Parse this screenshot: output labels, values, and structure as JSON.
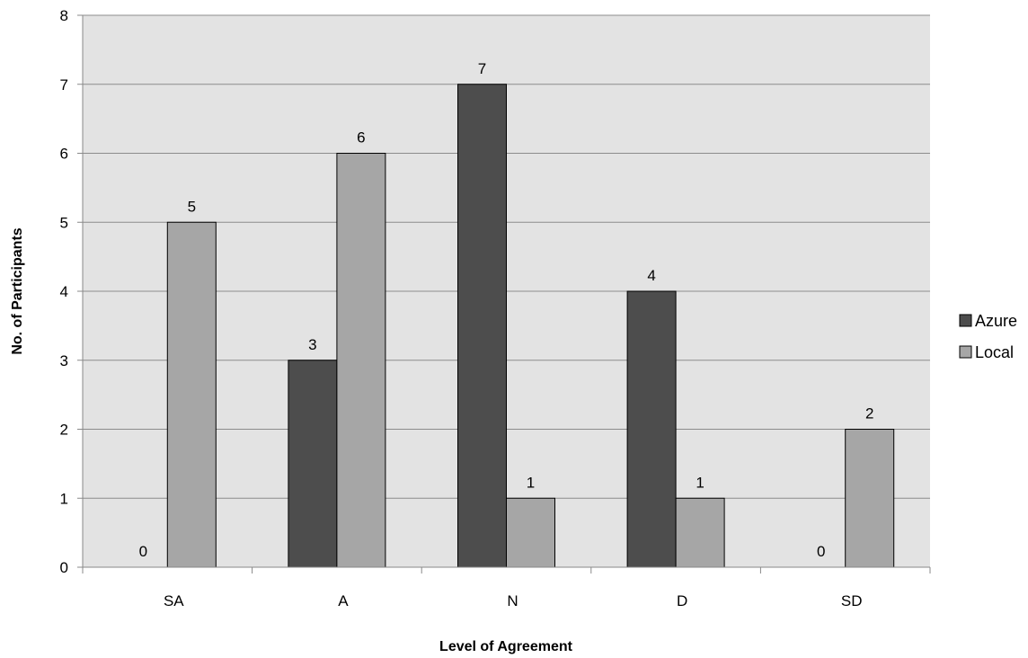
{
  "chart_data": {
    "type": "bar",
    "categories": [
      "SA",
      "A",
      "N",
      "D",
      "SD"
    ],
    "series": [
      {
        "name": "Azure",
        "values": [
          0,
          3,
          7,
          4,
          0
        ],
        "color": "#4d4d4d"
      },
      {
        "name": "Local",
        "values": [
          5,
          6,
          1,
          1,
          2
        ],
        "color": "#a6a6a6"
      }
    ],
    "xlabel": "Level of Agreement",
    "ylabel": "No. of Participants",
    "ylim": [
      0,
      8
    ],
    "yticks": [
      0,
      1,
      2,
      3,
      4,
      5,
      6,
      7,
      8
    ],
    "grid": true,
    "plot_background": "#e3e3e3",
    "legend_position": "right"
  }
}
